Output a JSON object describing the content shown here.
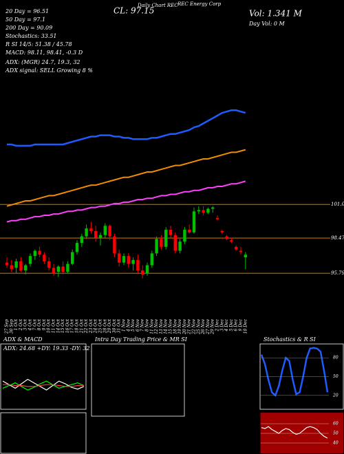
{
  "chart_data": {
    "type": "candlestick",
    "title": "Daily Chart REC",
    "subtitle": "REC Energy Corp",
    "close_label": "CL: 97.15",
    "volume_label": "Vol: 1.341 M",
    "day_volume_label": "Day Vol: 0 M",
    "info_lines": [
      "20 Day = 96.51",
      "50 Day = 97.1",
      "200 Day = 90.09",
      "Stochastics: 33.51",
      "R      SI 14/5: 51.38 / 45.78",
      "MACD: 98.11, 98.41, -0.3 D",
      "ADX:        (MGR) 24.7, 19.3, 32",
      "ADX  signal: SELL Growing 8 %"
    ],
    "categories": [
      "27 Sep",
      "30 Sep",
      "1 Oct",
      "2 Oct",
      "3 Oct",
      "4 Oct",
      "7 Oct",
      "8 Oct",
      "9 Oct",
      "10 Oct",
      "11 Oct",
      "14 Oct",
      "15 Oct",
      "16 Oct",
      "17 Oct",
      "18 Oct",
      "21 Oct",
      "22 Oct",
      "23 Oct",
      "24 Oct",
      "25 Oct",
      "28 Oct",
      "29 Oct",
      "30 Oct",
      "31 Oct",
      "1 Nov",
      "4 Nov",
      "5 Nov",
      "6 Nov",
      "7 Nov",
      "8 Nov",
      "11 Nov",
      "12 Nov",
      "13 Nov",
      "14 Nov",
      "15 Nov",
      "18 Nov",
      "19 Nov",
      "20 Nov",
      "21 Nov",
      "22 Nov",
      "25 Nov",
      "26 Nov",
      "27 Nov",
      "29 Nov",
      "2 Dec",
      "3 Dec",
      "4 Dec",
      "5 Dec",
      "6 Dec",
      "9 Dec",
      "10 Dec"
    ],
    "open": [
      96.6,
      96.4,
      96.2,
      96.7,
      96.0,
      96.5,
      97.1,
      97.5,
      97.2,
      96.7,
      96.2,
      95.9,
      96.3,
      95.9,
      96.5,
      97.4,
      98.1,
      98.6,
      99.2,
      99.0,
      98.5,
      98.7,
      99.4,
      98.6,
      97.3,
      96.6,
      97.1,
      96.5,
      96.8,
      96.0,
      95.8,
      96.4,
      97.3,
      98.4,
      97.8,
      99.1,
      98.7,
      97.5,
      98.2,
      99.1,
      98.9,
      100.5,
      100.6,
      100.4,
      100.7,
      100.0,
      99.0,
      98.6,
      98.3,
      97.8,
      97.5,
      97.0
    ],
    "high": [
      97.0,
      96.8,
      96.9,
      97.0,
      96.5,
      97.3,
      97.6,
      97.8,
      97.4,
      97.0,
      96.5,
      96.4,
      96.7,
      96.7,
      97.6,
      98.3,
      98.8,
      99.5,
      99.7,
      99.4,
      98.9,
      99.6,
      99.5,
      98.8,
      97.6,
      97.3,
      97.3,
      97.0,
      97.2,
      96.4,
      96.6,
      97.5,
      98.6,
      98.7,
      99.3,
      99.4,
      98.9,
      98.4,
      99.3,
      99.5,
      100.8,
      100.9,
      100.9,
      100.8,
      100.9,
      100.2,
      99.1,
      98.7,
      98.5,
      97.9,
      97.8,
      97.4
    ],
    "low": [
      96.2,
      95.9,
      95.8,
      95.9,
      95.7,
      96.3,
      96.8,
      97.0,
      96.5,
      96.0,
      95.6,
      95.5,
      95.7,
      95.8,
      96.4,
      97.2,
      97.8,
      98.4,
      98.8,
      98.2,
      97.9,
      98.5,
      98.3,
      97.0,
      96.3,
      96.4,
      96.2,
      96.0,
      95.8,
      95.4,
      95.6,
      96.2,
      97.1,
      97.6,
      97.6,
      98.5,
      97.3,
      97.3,
      98.0,
      98.8,
      98.8,
      100.3,
      100.2,
      100.3,
      100.4,
      99.8,
      98.8,
      98.3,
      98.1,
      97.5,
      97.2,
      96.1
    ],
    "close": [
      96.4,
      96.1,
      96.7,
      96.0,
      96.4,
      97.1,
      97.5,
      97.2,
      96.7,
      96.2,
      95.8,
      96.3,
      95.9,
      96.5,
      97.4,
      98.1,
      98.6,
      99.2,
      99.0,
      98.5,
      98.7,
      99.4,
      98.6,
      97.3,
      96.6,
      97.1,
      96.5,
      96.8,
      96.0,
      95.7,
      96.4,
      97.3,
      98.4,
      97.8,
      99.1,
      98.7,
      97.5,
      98.2,
      99.1,
      98.9,
      100.5,
      100.6,
      100.4,
      100.7,
      100.8,
      99.9,
      98.9,
      98.4,
      98.2,
      97.6,
      97.4,
      97.2
    ],
    "up_color": "#00c000",
    "down_color": "#ff0000",
    "series": [
      {
        "color": "#1e5cff",
        "values": [
          105.6,
          105.6,
          105.5,
          105.5,
          105.5,
          105.5,
          105.6,
          105.6,
          105.6,
          105.6,
          105.6,
          105.6,
          105.6,
          105.7,
          105.8,
          105.9,
          106.0,
          106.1,
          106.2,
          106.2,
          106.3,
          106.3,
          106.3,
          106.2,
          106.2,
          106.1,
          106.1,
          106.0,
          106.0,
          106.0,
          106.0,
          106.1,
          106.1,
          106.2,
          106.3,
          106.4,
          106.4,
          106.5,
          106.6,
          106.7,
          106.9,
          107.0,
          107.2,
          107.4,
          107.6,
          107.8,
          108.0,
          108.1,
          108.2,
          108.2,
          108.1,
          108.0
        ]
      },
      {
        "color": "#f08c00",
        "values": [
          100.9,
          101.0,
          101.1,
          101.2,
          101.3,
          101.3,
          101.4,
          101.5,
          101.6,
          101.7,
          101.7,
          101.8,
          101.9,
          102.0,
          102.1,
          102.2,
          102.3,
          102.4,
          102.5,
          102.5,
          102.6,
          102.7,
          102.8,
          102.9,
          103.0,
          103.1,
          103.1,
          103.2,
          103.3,
          103.4,
          103.5,
          103.5,
          103.6,
          103.7,
          103.8,
          103.9,
          104.0,
          104.0,
          104.1,
          104.2,
          104.3,
          104.4,
          104.5,
          104.5,
          104.6,
          104.7,
          104.8,
          104.9,
          105.0,
          105.0,
          105.1,
          105.2
        ]
      },
      {
        "color": "#ff40ff",
        "values": [
          99.7,
          99.8,
          99.8,
          99.9,
          99.9,
          100.0,
          100.1,
          100.1,
          100.2,
          100.2,
          100.3,
          100.3,
          100.4,
          100.5,
          100.5,
          100.6,
          100.6,
          100.7,
          100.8,
          100.8,
          100.9,
          100.9,
          101.0,
          101.1,
          101.1,
          101.2,
          101.2,
          101.3,
          101.4,
          101.4,
          101.5,
          101.5,
          101.6,
          101.7,
          101.7,
          101.8,
          101.8,
          101.9,
          102.0,
          102.0,
          102.1,
          102.1,
          102.2,
          102.3,
          102.3,
          102.4,
          102.4,
          102.5,
          102.6,
          102.6,
          102.7,
          102.8
        ]
      }
    ],
    "ylim": [
      92.5,
      116.6
    ],
    "yticks": [
      101.03,
      98.47,
      95.79
    ],
    "tick_color": "#f08c00",
    "panels": {
      "adx": {
        "title": "ADX  & MACD",
        "label": "ADX: 24.68  +DY: 19.33  -DY: 32",
        "ylim": [
          0,
          60
        ],
        "series": [
          {
            "color": "#00ff00",
            "values": [
              22,
              25,
              28,
              24,
              20,
              23,
              27,
              30,
              26,
              22,
              24,
              26,
              28,
              25
            ]
          },
          {
            "color": "#ffffff",
            "values": [
              30,
              26,
              22,
              27,
              32,
              28,
              24,
              20,
              25,
              30,
              27,
              23,
              21,
              24
            ]
          },
          {
            "color": "#ff4040",
            "values": [
              26,
              26,
              25,
              25,
              24,
              24,
              25,
              26,
              26,
              25,
              24,
              24,
              25,
              25
            ]
          }
        ]
      },
      "intraday": {
        "title": "Intra Day Trading Price  & MR          SI"
      },
      "stoch": {
        "title": "Stochastics & R          SI",
        "ylim": [
          0,
          100
        ],
        "yticks": [
          80,
          50,
          20
        ],
        "color": "#1e5cff",
        "values": [
          85,
          70,
          45,
          25,
          20,
          35,
          60,
          80,
          75,
          45,
          22,
          25,
          50,
          80,
          95,
          96,
          95,
          90,
          60,
          25
        ]
      },
      "rsi": {
        "ylim": [
          30,
          70
        ],
        "yticks": [
          60,
          50,
          40
        ],
        "color": "#ffffff",
        "background": "#a00000",
        "values": [
          56,
          55,
          57,
          54,
          52,
          50,
          53,
          55,
          54,
          51,
          49,
          50,
          53,
          56,
          57,
          56,
          54,
          50,
          47,
          45
        ]
      }
    }
  }
}
